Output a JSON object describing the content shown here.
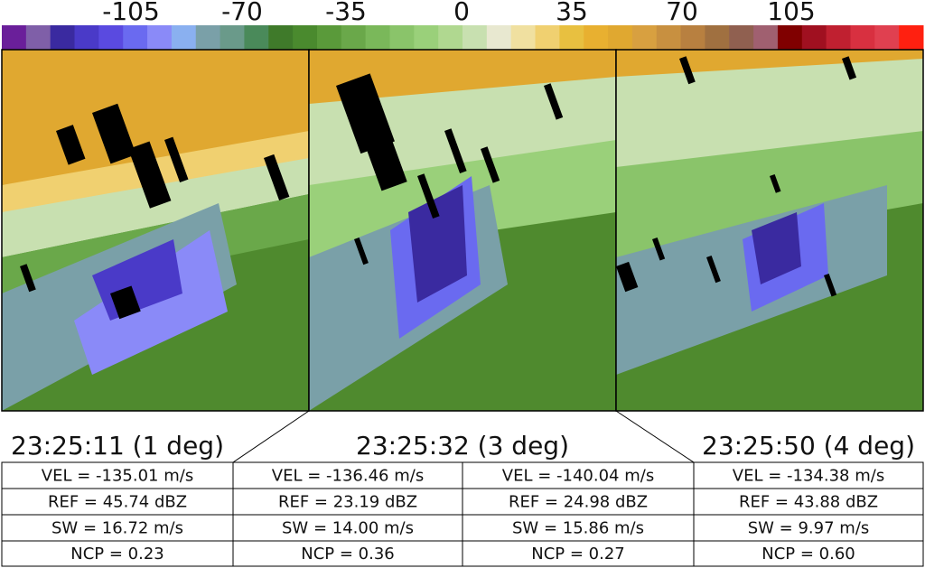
{
  "colorbar": {
    "ticks": [
      "-105",
      "-70",
      "-35",
      "0",
      "35",
      "70",
      "105"
    ]
  },
  "panels": [
    {
      "title": "23:25:11 (1 deg)"
    },
    {
      "title": "23:25:32 (3 deg)"
    },
    {
      "title": "23:25:50 (4 deg)"
    }
  ],
  "table": {
    "rows": [
      [
        "VEL = -135.01 m/s",
        "VEL = -136.46 m/s",
        "VEL = -140.04 m/s",
        "VEL = -134.38 m/s"
      ],
      [
        "REF = 45.74 dBZ",
        "REF = 23.19 dBZ",
        "REF = 24.98 dBZ",
        "REF = 43.88 dBZ"
      ],
      [
        "SW = 16.72 m/s",
        "SW = 14.00 m/s",
        "SW = 15.86 m/s",
        "SW = 9.97 m/s"
      ],
      [
        "NCP = 0.23",
        "NCP = 0.36",
        "NCP = 0.27",
        "NCP = 0.60"
      ]
    ]
  }
}
